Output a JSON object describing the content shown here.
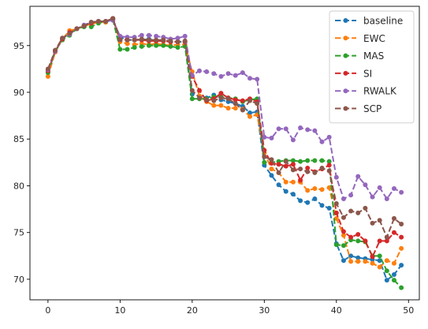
{
  "chart_data": {
    "type": "line",
    "title": "",
    "xlabel": "",
    "ylabel": "",
    "xlim": [
      -2.5,
      51.5
    ],
    "ylim": [
      67.8,
      99.2
    ],
    "xticks": [
      0,
      10,
      20,
      30,
      40,
      50
    ],
    "yticks": [
      70,
      75,
      80,
      85,
      90,
      95
    ],
    "grid": false,
    "legend": "top-right",
    "line_style": "dashed",
    "marker": "circle",
    "x": [
      0,
      1,
      2,
      3,
      4,
      5,
      6,
      7,
      8,
      9,
      10,
      11,
      12,
      13,
      14,
      15,
      16,
      17,
      18,
      19,
      20,
      21,
      22,
      23,
      24,
      25,
      26,
      27,
      28,
      29,
      30,
      31,
      32,
      33,
      34,
      35,
      36,
      37,
      38,
      39,
      40,
      41,
      42,
      43,
      44,
      45,
      46,
      47,
      48,
      49
    ],
    "series": [
      {
        "name": "baseline",
        "color": "#1f77b4",
        "values": [
          92.2,
          94.4,
          95.7,
          96.2,
          96.8,
          97.1,
          97.4,
          97.6,
          97.5,
          97.8,
          95.9,
          95.6,
          95.6,
          95.6,
          95.7,
          95.5,
          95.5,
          95.4,
          95.4,
          95.4,
          89.8,
          89.6,
          89.4,
          89.7,
          89.2,
          89.0,
          88.8,
          88.5,
          87.8,
          87.9,
          82.2,
          81.1,
          80.1,
          79.4,
          79.1,
          78.4,
          78.2,
          78.6,
          77.9,
          77.6,
          73.8,
          72.0,
          72.5,
          72.3,
          72.2,
          72.1,
          72.0,
          69.9,
          70.5,
          71.5
        ]
      },
      {
        "name": "EWC",
        "color": "#ff7f0e",
        "values": [
          91.7,
          94.3,
          95.7,
          96.6,
          96.8,
          97.1,
          97.3,
          97.5,
          97.5,
          97.9,
          95.4,
          95.2,
          95.1,
          95.2,
          95.1,
          95.2,
          95.1,
          95.0,
          95.1,
          95.1,
          92.2,
          89.6,
          89.0,
          88.6,
          88.6,
          88.3,
          88.3,
          88.2,
          87.4,
          87.6,
          83.5,
          81.8,
          81.4,
          80.4,
          80.4,
          80.4,
          79.5,
          79.7,
          79.6,
          79.8,
          76.5,
          74.7,
          71.9,
          71.9,
          71.9,
          71.7,
          71.3,
          72.0,
          71.7,
          73.3
        ]
      },
      {
        "name": "MAS",
        "color": "#2ca02c",
        "values": [
          92.1,
          94.4,
          95.6,
          96.1,
          96.8,
          97.0,
          97.0,
          97.4,
          97.6,
          97.8,
          94.6,
          94.6,
          94.8,
          94.9,
          95.0,
          95.0,
          95.0,
          94.9,
          94.8,
          94.9,
          89.3,
          89.3,
          89.3,
          89.5,
          89.5,
          89.4,
          89.3,
          89.0,
          89.2,
          89.3,
          82.5,
          82.5,
          82.6,
          82.7,
          82.7,
          82.6,
          82.7,
          82.7,
          82.7,
          82.6,
          73.7,
          73.6,
          74.2,
          74.1,
          74.0,
          72.5,
          72.5,
          70.9,
          69.9,
          69.1
        ]
      },
      {
        "name": "SI",
        "color": "#d62728",
        "values": [
          92.3,
          94.4,
          95.7,
          96.4,
          96.8,
          97.1,
          97.4,
          97.6,
          97.6,
          97.9,
          95.7,
          95.6,
          95.6,
          95.6,
          95.5,
          95.5,
          95.5,
          95.4,
          95.4,
          95.4,
          91.7,
          90.2,
          89.1,
          89.3,
          89.9,
          89.4,
          89.2,
          89.1,
          89.3,
          89.0,
          83.8,
          82.4,
          82.3,
          82.1,
          82.3,
          80.6,
          81.9,
          81.5,
          81.8,
          82.2,
          77.1,
          75.1,
          74.5,
          74.8,
          74.1,
          72.4,
          74.1,
          74.1,
          75.0,
          74.5
        ]
      },
      {
        "name": "RWALK",
        "color": "#9467bd",
        "values": [
          92.4,
          94.4,
          95.8,
          96.2,
          96.8,
          97.2,
          97.5,
          97.6,
          97.6,
          97.7,
          96.0,
          95.9,
          95.9,
          96.1,
          96.1,
          96.0,
          95.9,
          95.7,
          95.8,
          96.0,
          91.8,
          92.3,
          92.2,
          92.0,
          91.7,
          92.0,
          91.8,
          92.1,
          91.5,
          91.4,
          85.2,
          85.1,
          86.1,
          86.1,
          84.9,
          86.2,
          86.0,
          85.9,
          84.7,
          85.2,
          80.9,
          78.6,
          79.0,
          81.0,
          80.1,
          78.8,
          79.8,
          78.6,
          79.7,
          79.3
        ]
      },
      {
        "name": "SCP",
        "color": "#8c564b",
        "values": [
          92.5,
          94.5,
          95.8,
          96.3,
          96.8,
          97.1,
          97.5,
          97.6,
          97.6,
          97.9,
          95.6,
          95.6,
          95.6,
          95.7,
          95.6,
          95.6,
          95.6,
          95.5,
          95.4,
          95.5,
          90.2,
          89.4,
          89.2,
          89.1,
          89.4,
          89.3,
          88.8,
          88.1,
          89.1,
          88.8,
          83.1,
          82.8,
          81.4,
          82.6,
          81.7,
          81.8,
          81.5,
          81.4,
          81.9,
          81.6,
          78.1,
          76.6,
          77.3,
          77.1,
          77.6,
          76.0,
          76.3,
          74.5,
          76.5,
          75.9
        ]
      }
    ]
  }
}
